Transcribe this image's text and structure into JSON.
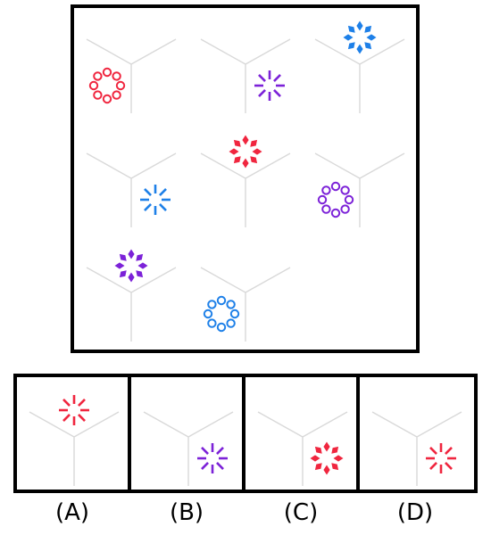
{
  "colors": {
    "red": "#f0263f",
    "purple": "#7c22d8",
    "blue": "#1e80e8",
    "line": "#d9d9d9",
    "frame": "#000000"
  },
  "grid": [
    {
      "row": 0,
      "col": 0,
      "motif": "ring",
      "color": "red",
      "region": "left"
    },
    {
      "row": 0,
      "col": 1,
      "motif": "dashes",
      "color": "purple",
      "region": "right"
    },
    {
      "row": 0,
      "col": 2,
      "motif": "diamonds",
      "color": "blue",
      "region": "top"
    },
    {
      "row": 1,
      "col": 0,
      "motif": "dashes",
      "color": "blue",
      "region": "right"
    },
    {
      "row": 1,
      "col": 1,
      "motif": "diamonds",
      "color": "red",
      "region": "top"
    },
    {
      "row": 1,
      "col": 2,
      "motif": "ring",
      "color": "purple",
      "region": "left"
    },
    {
      "row": 2,
      "col": 0,
      "motif": "diamonds",
      "color": "purple",
      "region": "top"
    },
    {
      "row": 2,
      "col": 1,
      "motif": "ring",
      "color": "blue",
      "region": "left"
    }
  ],
  "options": [
    {
      "label": "(A)",
      "motif": "dashes",
      "color": "red",
      "region": "top"
    },
    {
      "label": "(B)",
      "motif": "dashes",
      "color": "purple",
      "region": "right"
    },
    {
      "label": "(C)",
      "motif": "diamonds",
      "color": "red",
      "region": "right"
    },
    {
      "label": "(D)",
      "motif": "dashes",
      "color": "red",
      "region": "right"
    }
  ]
}
